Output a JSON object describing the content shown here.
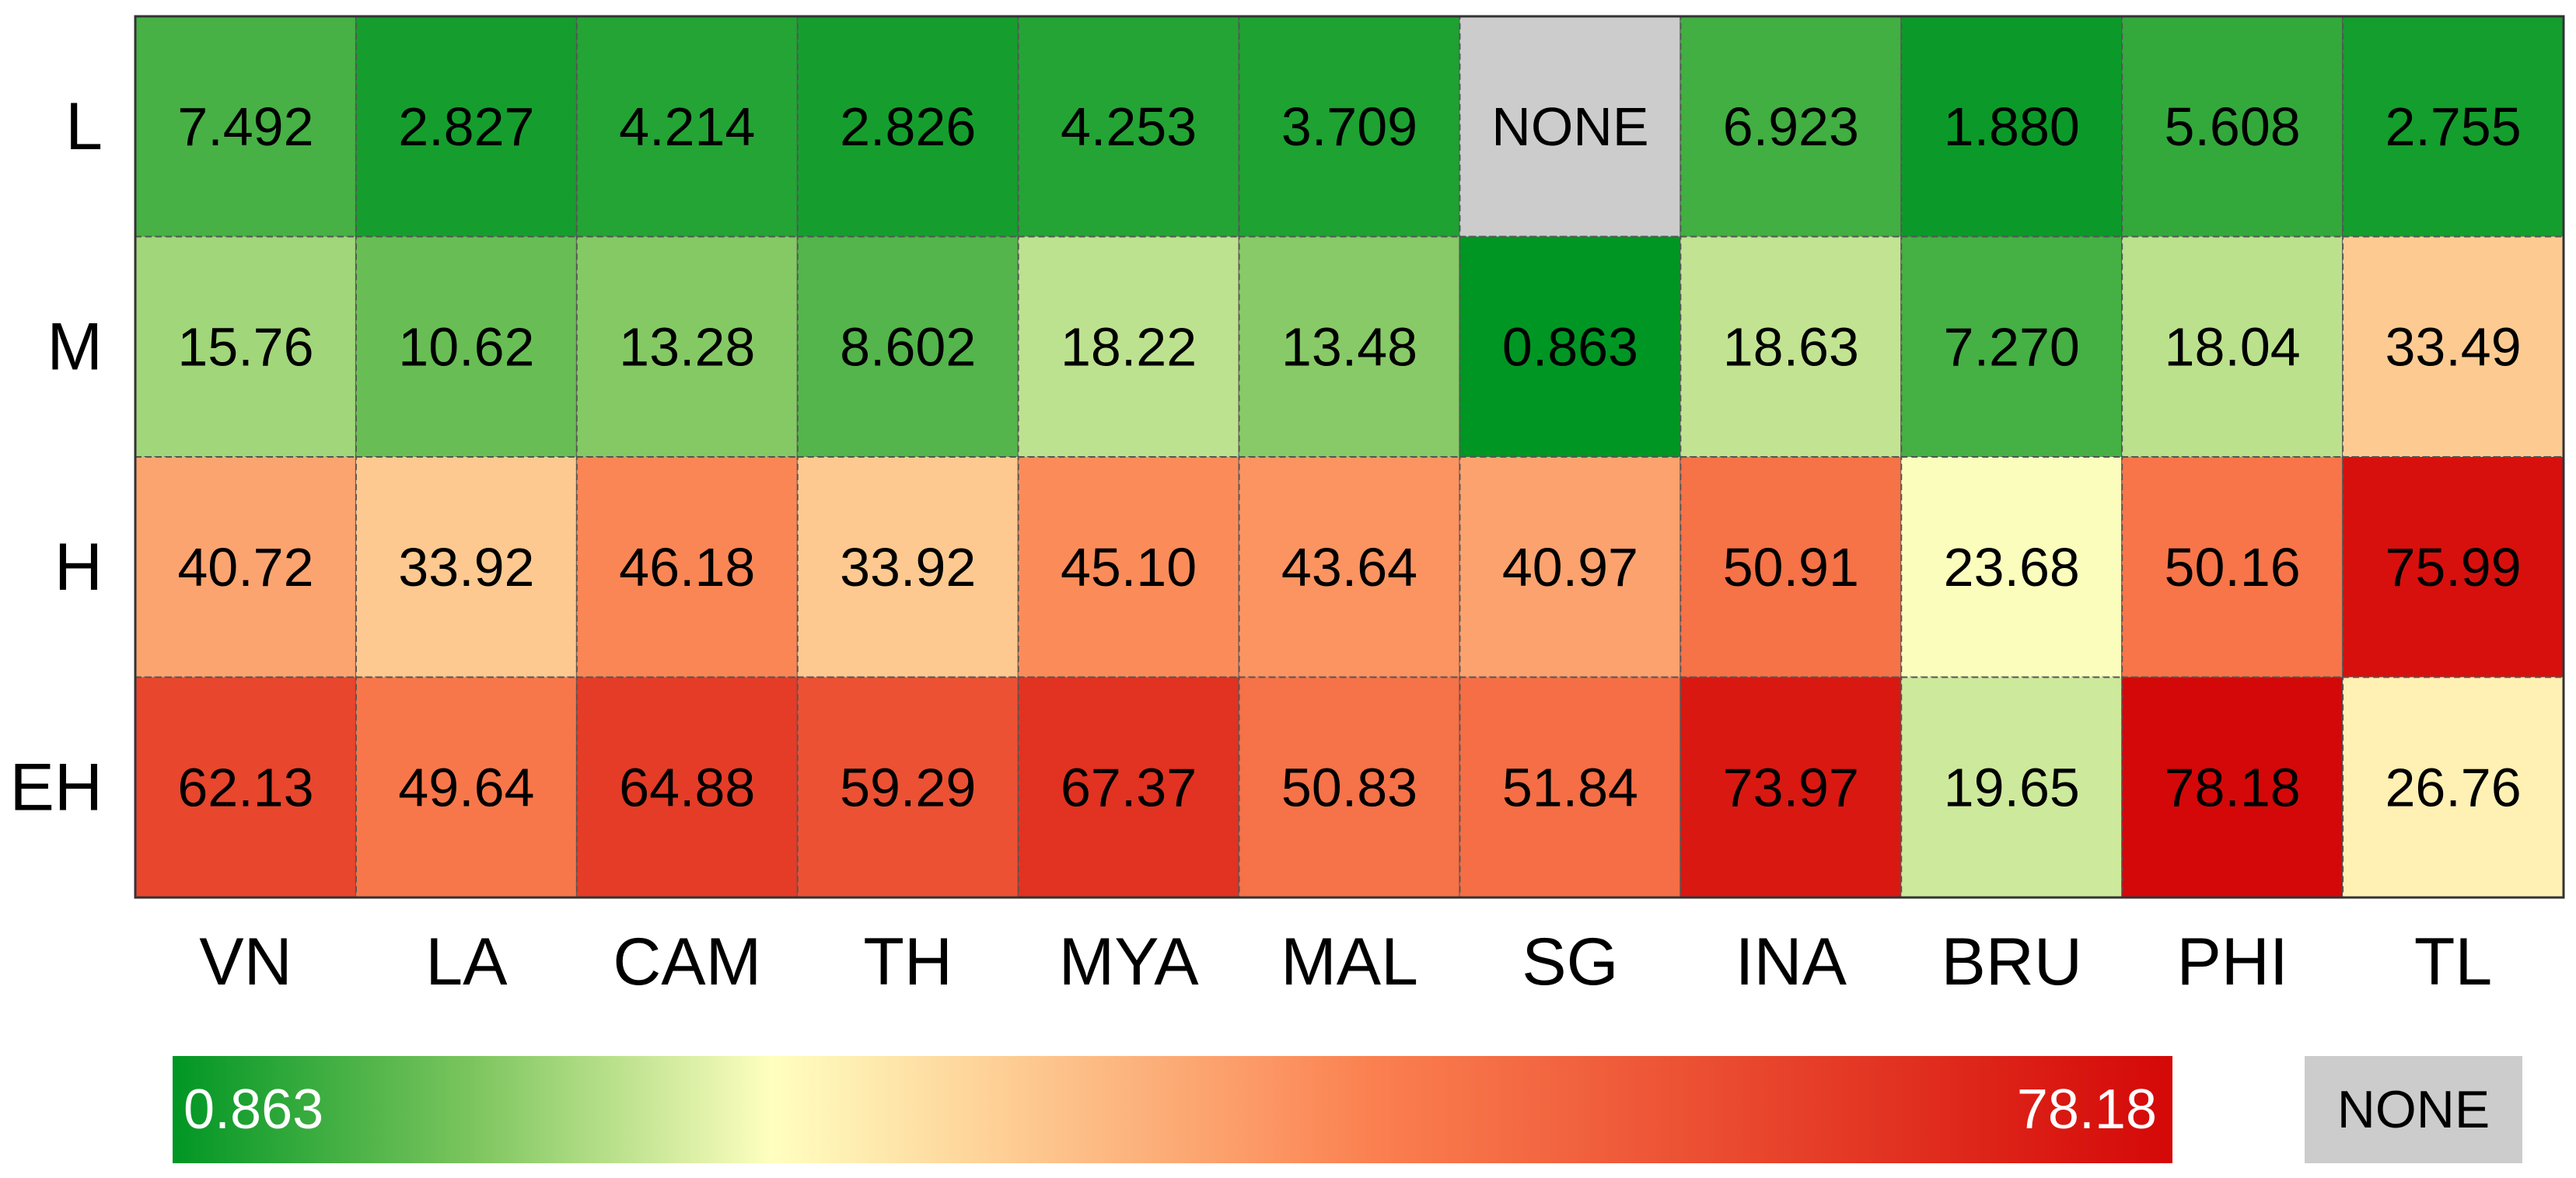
{
  "chart_data": {
    "type": "heatmap",
    "x": [
      "VN",
      "LA",
      "CAM",
      "TH",
      "MYA",
      "MAL",
      "SG",
      "INA",
      "BRU",
      "PHI",
      "TL"
    ],
    "y": [
      "L",
      "M",
      "H",
      "EH"
    ],
    "values": [
      [
        7.492,
        2.827,
        4.214,
        2.826,
        4.253,
        3.709,
        null,
        6.923,
        1.88,
        5.608,
        2.755
      ],
      [
        15.76,
        10.62,
        13.28,
        8.602,
        18.22,
        13.48,
        0.863,
        18.63,
        7.27,
        18.04,
        33.49
      ],
      [
        40.72,
        33.92,
        46.18,
        33.92,
        45.1,
        43.64,
        40.97,
        50.91,
        23.68,
        50.16,
        75.99
      ],
      [
        62.13,
        49.64,
        64.88,
        59.29,
        67.37,
        50.83,
        51.84,
        73.97,
        19.65,
        78.18,
        26.76
      ]
    ],
    "value_labels": [
      [
        "7.492",
        "2.827",
        "4.214",
        "2.826",
        "4.253",
        "3.709",
        "NONE",
        "6.923",
        "1.880",
        "5.608",
        "2.755"
      ],
      [
        "15.76",
        "10.62",
        "13.28",
        "8.602",
        "18.22",
        "13.48",
        "0.863",
        "18.63",
        "7.270",
        "18.04",
        "33.49"
      ],
      [
        "40.72",
        "33.92",
        "46.18",
        "33.92",
        "45.10",
        "43.64",
        "40.97",
        "50.91",
        "23.68",
        "50.16",
        "75.99"
      ],
      [
        "62.13",
        "49.64",
        "64.88",
        "59.29",
        "67.37",
        "50.83",
        "51.84",
        "73.97",
        "19.65",
        "78.18",
        "26.76"
      ]
    ],
    "colorlim": [
      0.863,
      78.18
    ],
    "colorscale": [
      {
        "offset": 0,
        "color": "#009624"
      },
      {
        "offset": 0.15,
        "color": "#7cc55e"
      },
      {
        "offset": 0.3,
        "color": "#ffffc0"
      },
      {
        "offset": 0.6,
        "color": "#fb8050"
      },
      {
        "offset": 1,
        "color": "#d40808"
      }
    ],
    "missing_label": "NONE",
    "missing_color": "#cccccc"
  }
}
